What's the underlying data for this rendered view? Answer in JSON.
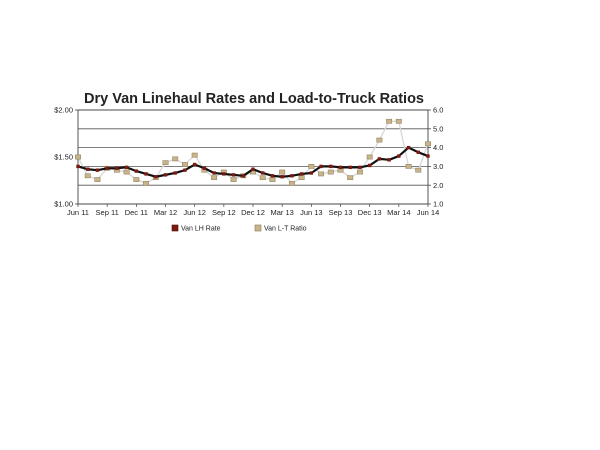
{
  "chart_data": {
    "type": "line",
    "title": "Dry Van Linehaul Rates and Load-to-Truck Ratios",
    "xlabel": "",
    "ylabel": "",
    "y2label": "",
    "ylim": [
      1.0,
      2.0
    ],
    "y2lim": [
      1.0,
      6.0
    ],
    "y_ticks": [
      "$1.00",
      "$1.50",
      "$2.00"
    ],
    "y2_ticks": [
      "1.0",
      "2.0",
      "3.0",
      "4.0",
      "5.0",
      "6.0"
    ],
    "grid": true,
    "legend_position": "bottom-center",
    "x_tick_labels": [
      "Jun 11",
      "Sep 11",
      "Dec 11",
      "Mar 12",
      "Jun 12",
      "Sep 12",
      "Dec 12",
      "Mar 13",
      "Jun 13",
      "Sep 13",
      "Dec 13",
      "Mar 14",
      "Jun 14"
    ],
    "x": [
      "Jun 11",
      "Jul 11",
      "Aug 11",
      "Sep 11",
      "Oct 11",
      "Nov 11",
      "Dec 11",
      "Jan 12",
      "Feb 12",
      "Mar 12",
      "Apr 12",
      "May 12",
      "Jun 12",
      "Jul 12",
      "Aug 12",
      "Sep 12",
      "Oct 12",
      "Nov 12",
      "Dec 12",
      "Jan 13",
      "Feb 13",
      "Mar 13",
      "Apr 13",
      "May 13",
      "Jun 13",
      "Jul 13",
      "Aug 13",
      "Sep 13",
      "Oct 13",
      "Nov 13",
      "Dec 13",
      "Jan 14",
      "Feb 14",
      "Mar 14",
      "Apr 14",
      "May 14",
      "Jun 14"
    ],
    "series": [
      {
        "name": "Van LH Rate",
        "axis": "left",
        "color": "#7a1a12",
        "values": [
          1.4,
          1.37,
          1.36,
          1.38,
          1.38,
          1.39,
          1.35,
          1.32,
          1.29,
          1.31,
          1.33,
          1.36,
          1.42,
          1.38,
          1.33,
          1.32,
          1.31,
          1.3,
          1.37,
          1.33,
          1.3,
          1.29,
          1.3,
          1.32,
          1.33,
          1.4,
          1.4,
          1.39,
          1.39,
          1.39,
          1.41,
          1.48,
          1.47,
          1.51,
          1.6,
          1.55,
          1.51
        ]
      },
      {
        "name": "Van L-T Ratio",
        "axis": "right",
        "color": "#c8b48a",
        "values": [
          3.5,
          2.5,
          2.3,
          2.9,
          2.8,
          2.7,
          2.3,
          2.1,
          2.4,
          3.2,
          3.4,
          3.1,
          3.6,
          2.8,
          2.4,
          2.7,
          2.3,
          2.5,
          2.7,
          2.4,
          2.3,
          2.7,
          2.1,
          2.4,
          3.0,
          2.6,
          2.7,
          2.8,
          2.4,
          2.7,
          3.5,
          4.4,
          5.4,
          5.4,
          3.0,
          2.8,
          4.2
        ]
      }
    ],
    "legend": [
      "Van LH Rate",
      "Van L-T Ratio"
    ]
  }
}
